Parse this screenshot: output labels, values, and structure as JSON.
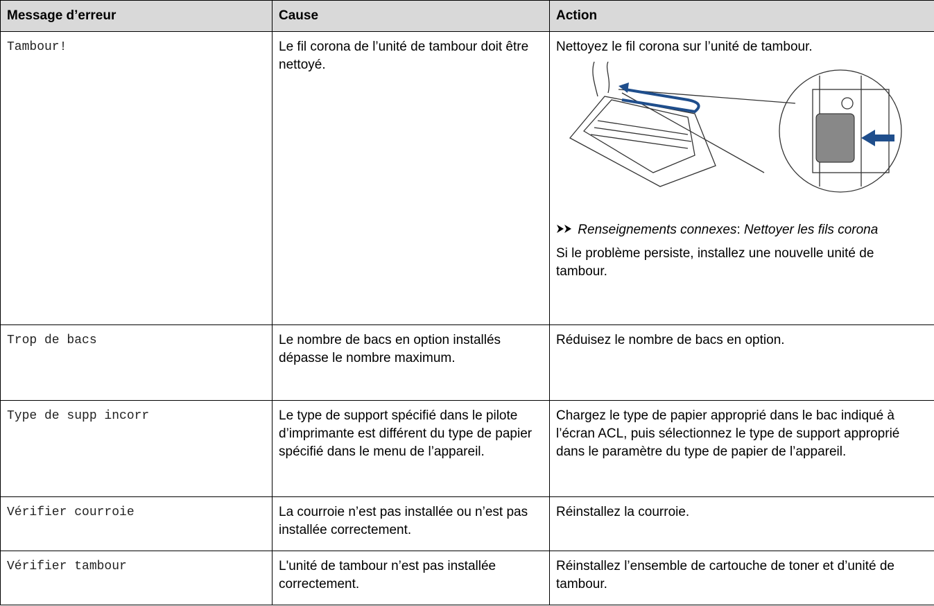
{
  "table": {
    "headers": [
      "Message d’erreur",
      "Cause",
      "Action"
    ],
    "rows": [
      {
        "message": "Tambour!",
        "cause": "Le fil corona de l’unité de tambour doit être nettoyé.",
        "action": [
          "Nettoyez le fil corona sur l’unité de tambour.",
          "Si le problème persiste, installez une nouvelle unité de tambour."
        ],
        "related": {
          "label": "Renseignements connexes",
          "separator": ":",
          "link": "Nettoyer les fils corona"
        }
      },
      {
        "message": "Trop de bacs",
        "cause": "Le nombre de bacs en option installés dépasse le nombre maximum.",
        "action": [
          "Réduisez le nombre de bacs en option."
        ]
      },
      {
        "message": "Type de supp incorr",
        "cause": "Le type de support spécifié dans le pilote d’imprimante est différent du type de papier spécifié dans le menu de l’appareil.",
        "action": [
          "Chargez le type de papier approprié dans le bac indiqué à l’écran ACL, puis sélectionnez le type de support approprié dans le paramètre du type de papier de l’appareil."
        ]
      },
      {
        "message": "Vérifier courroie",
        "cause": "La courroie n’est pas installée ou n’est pas installée correctement.",
        "action": [
          "Réinstallez la courroie."
        ]
      },
      {
        "message": "Vérifier tambour",
        "cause": "L'unité de tambour n’est pas installée correctement.",
        "action": [
          "Réinstallez l’ensemble de cartouche de toner et d’unité de tambour."
        ]
      }
    ]
  }
}
